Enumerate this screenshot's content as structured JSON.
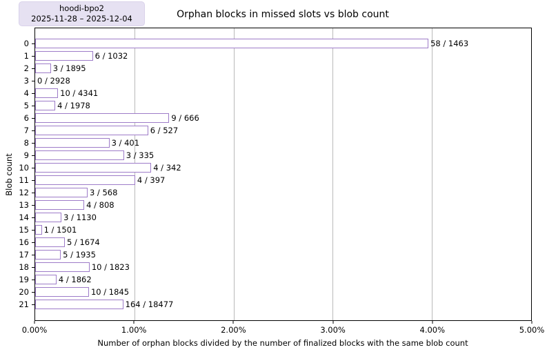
{
  "legend": {
    "run_name": "hoodi-bpo2",
    "date_range": "2025-11-28 – 2025-12-04"
  },
  "chart_data": {
    "type": "bar",
    "orientation": "horizontal",
    "title": "Orphan blocks in missed slots vs blob count",
    "xlabel": "Number of orphan blocks divided by the number of finalized blocks with the same blob count",
    "ylabel": "Blob count",
    "xlim_pct": [
      0,
      5
    ],
    "x_ticks": [
      "0.00%",
      "1.00%",
      "2.00%",
      "3.00%",
      "4.00%",
      "5.00%"
    ],
    "grid": "vertical gridlines at each x tick",
    "legend_position": "outside top-left",
    "bars": [
      {
        "blob_count": "0",
        "label": "58 / 1463",
        "orphan": 58,
        "finalized": 1463,
        "value_pct": 3.9645
      },
      {
        "blob_count": "1",
        "label": "6 / 1032",
        "orphan": 6,
        "finalized": 1032,
        "value_pct": 0.5814
      },
      {
        "blob_count": "2",
        "label": "3 / 1895",
        "orphan": 3,
        "finalized": 1895,
        "value_pct": 0.1583
      },
      {
        "blob_count": "3",
        "label": "0 / 2928",
        "orphan": 0,
        "finalized": 2928,
        "value_pct": 0.0
      },
      {
        "blob_count": "4",
        "label": "10 / 4341",
        "orphan": 10,
        "finalized": 4341,
        "value_pct": 0.2304
      },
      {
        "blob_count": "5",
        "label": "4 / 1978",
        "orphan": 4,
        "finalized": 1978,
        "value_pct": 0.2022
      },
      {
        "blob_count": "6",
        "label": "9 / 666",
        "orphan": 9,
        "finalized": 666,
        "value_pct": 1.3514
      },
      {
        "blob_count": "7",
        "label": "6 / 527",
        "orphan": 6,
        "finalized": 527,
        "value_pct": 1.1385
      },
      {
        "blob_count": "8",
        "label": "3 / 401",
        "orphan": 3,
        "finalized": 401,
        "value_pct": 0.7481
      },
      {
        "blob_count": "9",
        "label": "3 / 335",
        "orphan": 3,
        "finalized": 335,
        "value_pct": 0.8955
      },
      {
        "blob_count": "10",
        "label": "4 / 342",
        "orphan": 4,
        "finalized": 342,
        "value_pct": 1.1696
      },
      {
        "blob_count": "11",
        "label": "4 / 397",
        "orphan": 4,
        "finalized": 397,
        "value_pct": 1.0076
      },
      {
        "blob_count": "12",
        "label": "3 / 568",
        "orphan": 3,
        "finalized": 568,
        "value_pct": 0.5282
      },
      {
        "blob_count": "13",
        "label": "4 / 808",
        "orphan": 4,
        "finalized": 808,
        "value_pct": 0.495
      },
      {
        "blob_count": "14",
        "label": "3 / 1130",
        "orphan": 3,
        "finalized": 1130,
        "value_pct": 0.2655
      },
      {
        "blob_count": "15",
        "label": "1 / 1501",
        "orphan": 1,
        "finalized": 1501,
        "value_pct": 0.0666
      },
      {
        "blob_count": "16",
        "label": "5 / 1674",
        "orphan": 5,
        "finalized": 1674,
        "value_pct": 0.2987
      },
      {
        "blob_count": "17",
        "label": "5 / 1935",
        "orphan": 5,
        "finalized": 1935,
        "value_pct": 0.2584
      },
      {
        "blob_count": "18",
        "label": "10 / 1823",
        "orphan": 10,
        "finalized": 1823,
        "value_pct": 0.5485
      },
      {
        "blob_count": "19",
        "label": "4 / 1862",
        "orphan": 4,
        "finalized": 1862,
        "value_pct": 0.2148
      },
      {
        "blob_count": "20",
        "label": "10 / 1845",
        "orphan": 10,
        "finalized": 1845,
        "value_pct": 0.542
      },
      {
        "blob_count": "21",
        "label": "164 / 18477",
        "orphan": 164,
        "finalized": 18477,
        "value_pct": 0.8876
      }
    ],
    "colors": {
      "bar_edge": "#9d7bc8",
      "bar_fill": "#ffffff",
      "gridline": "#b9b9b9",
      "axis": "#000000",
      "legend_bg": "#e6e1f2",
      "legend_border": "#d9d2ea",
      "text": "#000000"
    }
  }
}
